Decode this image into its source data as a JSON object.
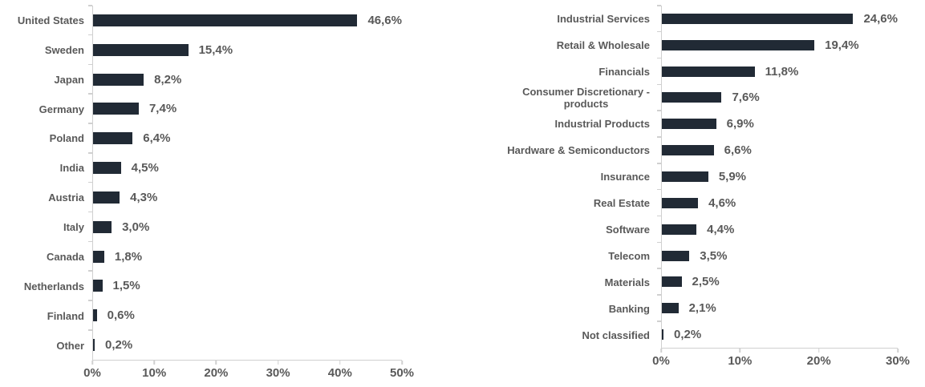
{
  "colors": {
    "bar": "#212A35",
    "label_text": "#595959",
    "axis_line": "#D0D0D0"
  },
  "chart_data": [
    {
      "type": "bar",
      "orientation": "horizontal",
      "title": "",
      "categories": [
        "United States",
        "Sweden",
        "Japan",
        "Germany",
        "Poland",
        "India",
        "Austria",
        "Italy",
        "Canada",
        "Netherlands",
        "Finland",
        "Other"
      ],
      "values": [
        46.6,
        15.4,
        8.2,
        7.4,
        6.4,
        4.5,
        4.3,
        3.0,
        1.8,
        1.5,
        0.6,
        0.2
      ],
      "value_labels": [
        "46,6%",
        "15,4%",
        "8,2%",
        "7,4%",
        "6,4%",
        "4,5%",
        "4,3%",
        "3,0%",
        "1,8%",
        "1,5%",
        "0,6%",
        "0,2%"
      ],
      "x_ticks": [
        "0%",
        "10%",
        "20%",
        "30%",
        "40%",
        "50%"
      ],
      "xlim": [
        0,
        50
      ],
      "grid": false,
      "legend": null,
      "xlabel": "",
      "ylabel": ""
    },
    {
      "type": "bar",
      "orientation": "horizontal",
      "title": "",
      "categories": [
        "Industrial Services",
        "Retail & Wholesale",
        "Financials",
        "Consumer Discretionary -\nproducts",
        "Industrial Products",
        "Hardware & Semiconductors",
        "Insurance",
        "Real Estate",
        "Software",
        "Telecom",
        "Materials",
        "Banking",
        "Not classified"
      ],
      "values": [
        24.6,
        19.4,
        11.8,
        7.6,
        6.9,
        6.6,
        5.9,
        4.6,
        4.4,
        3.5,
        2.5,
        2.1,
        0.2
      ],
      "value_labels": [
        "24,6%",
        "19,4%",
        "11,8%",
        "7,6%",
        "6,9%",
        "6,6%",
        "5,9%",
        "4,6%",
        "4,4%",
        "3,5%",
        "2,5%",
        "2,1%",
        "0,2%"
      ],
      "x_ticks": [
        "0%",
        "10%",
        "20%",
        "30%"
      ],
      "xlim": [
        0,
        30
      ],
      "grid": false,
      "legend": null,
      "xlabel": "",
      "ylabel": ""
    }
  ]
}
